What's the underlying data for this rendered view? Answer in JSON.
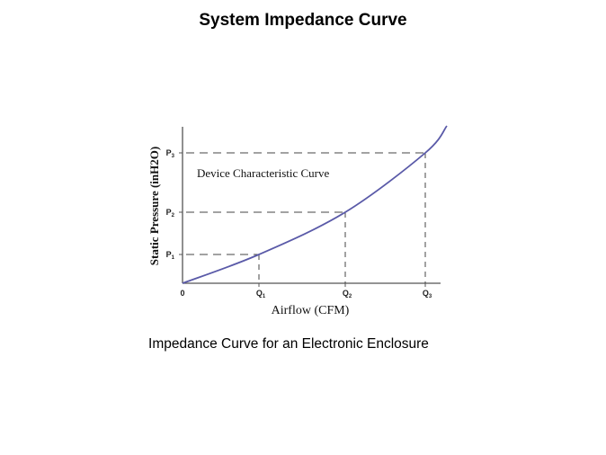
{
  "page": {
    "title": "System Impedance Curve",
    "caption": "Impedance Curve for an Electronic Enclosure"
  },
  "chart_data": {
    "type": "line",
    "xlabel": "Airflow (CFM)",
    "ylabel": "Static Pressure  (inH2O)",
    "origin_label": "0",
    "annotation": "Device Characteristic Curve",
    "x_ticks": [
      "Q1",
      "Q2",
      "Q3"
    ],
    "y_ticks": [
      "P1",
      "P2",
      "P3"
    ],
    "grid": false,
    "series": [
      {
        "x": [
          0,
          1,
          2,
          3
        ],
        "y": [
          0,
          1,
          2,
          3
        ],
        "color": "#5a5aa8"
      }
    ],
    "colors": {
      "curve": "#5a5aa8",
      "axis": "#555555",
      "guide": "#444444"
    }
  }
}
